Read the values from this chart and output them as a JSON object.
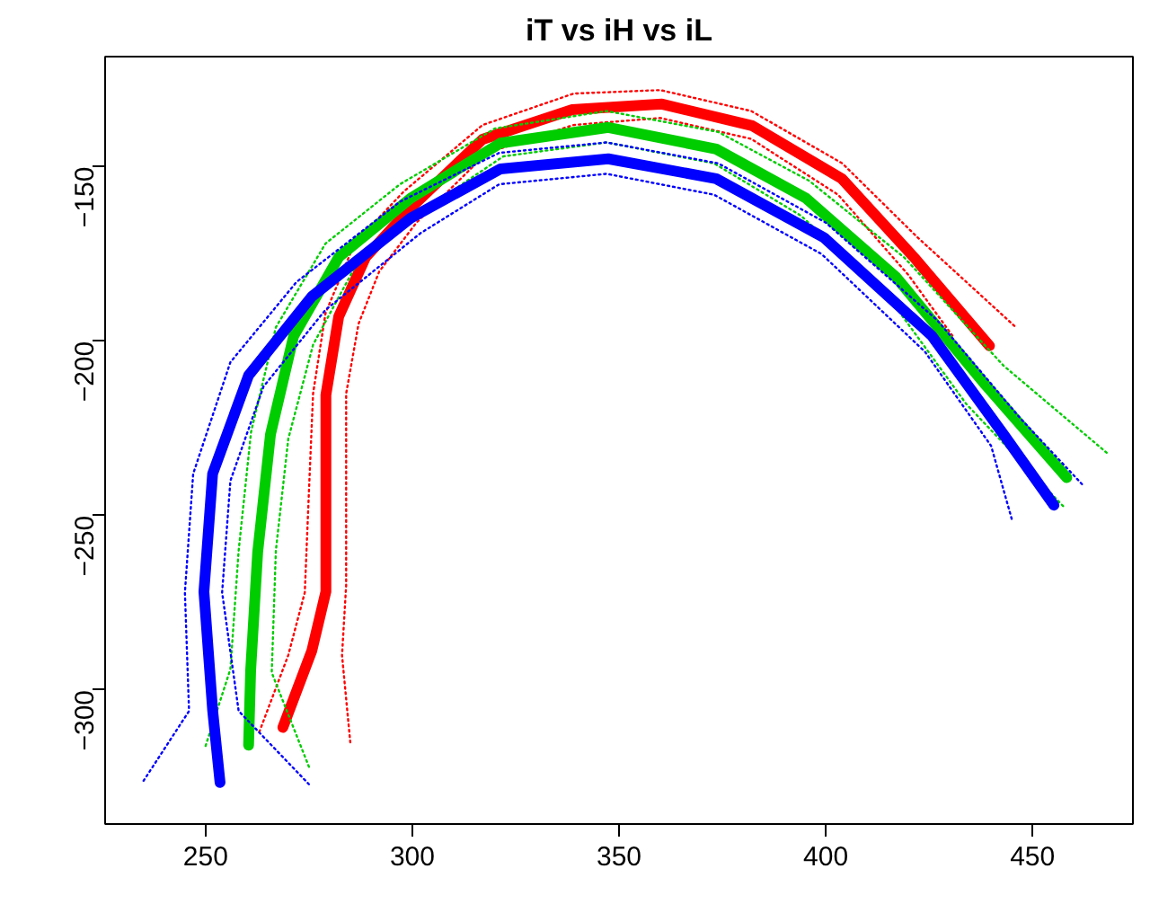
{
  "chart_data": {
    "type": "line",
    "title": "iT vs iH vs iL",
    "xlim": [
      225.7,
      474.3
    ],
    "ylim": [
      -338.4,
      -118.4
    ],
    "xticks": [
      250,
      300,
      350,
      400,
      450
    ],
    "yticks": [
      -300,
      -250,
      -200,
      -150
    ],
    "grid": false,
    "marker": "none",
    "series": [
      {
        "color": "#ff0000",
        "line_style": "solid",
        "x": [
          268.7,
          275.7,
          279.1,
          279.1,
          279.1,
          282.2,
          288.7,
          299.6,
          317,
          338.7,
          360.4,
          382.2,
          403.9,
          421.3,
          439.6
        ],
        "values": [
          -310.7,
          -288.7,
          -271.8,
          -243.6,
          -215.4,
          -192.9,
          -175.9,
          -161.8,
          -142.1,
          -133.6,
          -132,
          -138.2,
          -153.4,
          -175.9,
          -201.3
        ]
      },
      {
        "color": "#ff0000",
        "line_style": "dotted",
        "x": [
          263,
          270,
          274,
          275,
          276,
          279,
          286,
          298,
          317,
          339,
          360,
          382,
          404,
          422,
          446
        ],
        "values": [
          -312,
          -290,
          -272,
          -243,
          -215,
          -192,
          -172,
          -157,
          -138,
          -129,
          -128,
          -134,
          -149,
          -170,
          -196
        ]
      },
      {
        "color": "#ff0000",
        "line_style": "dotted",
        "x": [
          285,
          283,
          284,
          284,
          284,
          287,
          292,
          301,
          318,
          339,
          360,
          382,
          403,
          420,
          431
        ],
        "values": [
          -315,
          -290,
          -270,
          -243,
          -215,
          -195,
          -180,
          -166,
          -146,
          -138,
          -136,
          -142,
          -158,
          -181,
          -199
        ]
      },
      {
        "color": "#00cd00",
        "line_style": "solid",
        "x": [
          260.4,
          260.9,
          262.6,
          265.7,
          271.3,
          282.2,
          299.6,
          321.3,
          347.4,
          373.5,
          395.2,
          417,
          438.7,
          458.3
        ],
        "values": [
          -315.8,
          -294.4,
          -260.5,
          -226.7,
          -198.5,
          -175.9,
          -159,
          -143.2,
          -138.7,
          -144.9,
          -159,
          -181.6,
          -212.6,
          -239.1
        ]
      },
      {
        "color": "#00cd00",
        "line_style": "dotted",
        "x": [
          250,
          256,
          258,
          261,
          267,
          279,
          297,
          320,
          347,
          374,
          396,
          419,
          443,
          468
        ],
        "values": [
          -316,
          -294,
          -260,
          -226,
          -196,
          -172,
          -155,
          -139,
          -134,
          -140,
          -154,
          -176,
          -207,
          -232
        ]
      },
      {
        "color": "#00cd00",
        "line_style": "dotted",
        "x": [
          275,
          266,
          267,
          270,
          276,
          286,
          302,
          322,
          347,
          373,
          394,
          415,
          434,
          458
        ],
        "values": [
          -322,
          -295,
          -260,
          -228,
          -201,
          -179,
          -163,
          -147,
          -143,
          -149,
          -164,
          -187,
          -218,
          -248
        ]
      },
      {
        "color": "#0000ff",
        "line_style": "solid",
        "x": [
          253.5,
          251.7,
          249.6,
          251.7,
          260.4,
          275.7,
          299.6,
          321.3,
          347.4,
          373.5,
          399.6,
          425.7,
          443,
          455.2
        ],
        "values": [
          -326.5,
          -305.7,
          -271.8,
          -238,
          -209.8,
          -187.2,
          -164.7,
          -150.6,
          -147.7,
          -153.4,
          -170.3,
          -198.5,
          -226.7,
          -247
        ]
      },
      {
        "color": "#0000ff",
        "line_style": "dotted",
        "x": [
          235,
          246,
          245,
          247,
          256,
          272,
          297,
          321,
          347,
          374,
          400,
          427,
          447,
          462
        ],
        "values": [
          -326,
          -306,
          -272,
          -238,
          -206,
          -183,
          -160,
          -146,
          -143,
          -149,
          -166,
          -194,
          -222,
          -241
        ]
      },
      {
        "color": "#0000ff",
        "line_style": "dotted",
        "x": [
          275,
          258,
          254,
          256,
          264,
          279,
          302,
          321,
          347,
          373,
          399,
          424,
          440,
          445
        ],
        "values": [
          -327,
          -306,
          -272,
          -240,
          -213,
          -191,
          -169,
          -155,
          -152,
          -158,
          -175,
          -203,
          -230,
          -251
        ]
      }
    ]
  }
}
